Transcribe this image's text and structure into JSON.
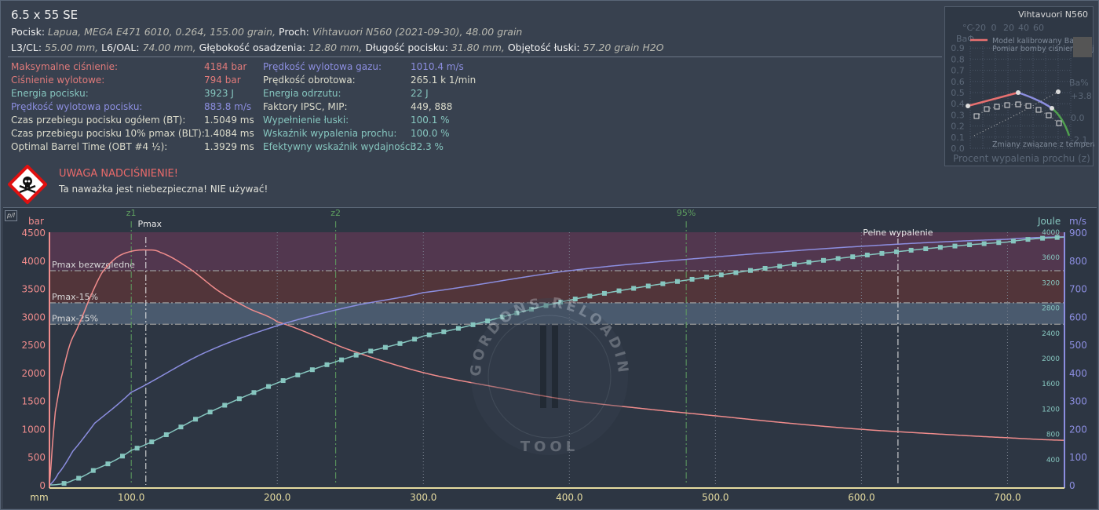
{
  "header": {
    "title": "6.5 x 55 SE",
    "bullet_label": "Pocisk:",
    "bullet_value": "Lapua, MEGA E471 6010, 0.264, 155.00 grain,",
    "powder_label": "Proch:",
    "powder_value": "Vihtavuori N560 (2021-09-30), 48.00 grain",
    "cl_label": "L3/CL:",
    "cl_value": "55.00 mm,",
    "oal_label": "L6/OAL:",
    "oal_value": "74.00 mm,",
    "seat_label": "Głębokość osadzenia:",
    "seat_value": "12.80 mm,",
    "blen_label": "Długość pocisku:",
    "blen_value": "31.80 mm,",
    "vol_label": "Objętość łuski:",
    "vol_value": "57.20 grain H2O"
  },
  "stats_left": [
    {
      "label": "Maksymalne ciśnienie:",
      "value": "4184 bar",
      "color": "red"
    },
    {
      "label": "Ciśnienie wylotowe:",
      "value": "794 bar",
      "color": "red"
    },
    {
      "label": "Energia pocisku:",
      "value": "3923 J",
      "color": "teal"
    },
    {
      "label": "Prędkość wylotowa pocisku:",
      "value": "883.8 m/s",
      "color": "pur"
    },
    {
      "label": "Czas przebiegu pocisku ogółem (BT):",
      "value": "1.5049 ms",
      "color": "lt"
    },
    {
      "label": "Czas przebiegu pocisku 10% pmax (BLT):",
      "value": "1.4084 ms",
      "color": "lt"
    },
    {
      "label": "Optimal Barrel Time (OBT #4 ½):",
      "value": "1.3929 ms",
      "color": "lt"
    }
  ],
  "stats_right": [
    {
      "label": "Prędkość wylotowa gazu:",
      "value": "1010.4 m/s",
      "color": "pur"
    },
    {
      "label": "Prędkość obrotowa:",
      "value": "265.1 k 1/min",
      "color": "lt"
    },
    {
      "label": "Energia odrzutu:",
      "value": "22 J",
      "color": "teal"
    },
    {
      "label": "Faktory IPSC, MIP:",
      "value": "449, 888",
      "color": "lt"
    },
    {
      "label": "Wypełnienie łuski:",
      "value": "100.1 %",
      "color": "teal"
    },
    {
      "label": "Wskaźnik wypalenia prochu:",
      "value": "100.0 %",
      "color": "teal"
    },
    {
      "label": "Efektywny wskaźnik wydajności:",
      "value": "32.3 %",
      "color": "teal"
    }
  ],
  "warning": {
    "title": "UWAGA NADCIŚNIENIE!",
    "text": "Ta naważka jest niebezpieczna! NIE używać!"
  },
  "inset": {
    "title": "Vihtavuori N560",
    "y_label": "BaΦ",
    "y_ticks": [
      "0.0",
      "0.1",
      "0.2",
      "0.3",
      "0.4",
      "0.5",
      "0.6",
      "0.7",
      "0.8",
      "0.9"
    ],
    "temp_label": "°C",
    "temp_ticks": [
      "-20",
      "0",
      "20",
      "40",
      "60"
    ],
    "right_label": "Ba%",
    "right_ticks": [
      "+3.8",
      "0.0",
      "-2.1"
    ],
    "legend": [
      "Model kalibrowany BaΦ",
      "Pomiar bomby ciśnieniowej",
      "Zmiany związane z temperaturą"
    ],
    "x_label": "Procent wypalenia prochu (z)"
  },
  "plot_toggle": "p/l",
  "watermark": {
    "top": "GORDONS RELOADING",
    "bottom": "TOOL"
  },
  "colors": {
    "pressure": "#f08c8c",
    "velocity": "#8c8ee0",
    "energy": "#86c6bf",
    "band_abs": "#52374f",
    "band_15": "#52353a",
    "band_25": "#4a5a6e"
  },
  "chart_data": {
    "type": "line",
    "xlabel": "mm",
    "ylabel_left": "bar",
    "ylabel_right1": "Joule",
    "ylabel_right2": "m/s",
    "xlim": [
      44,
      739
    ],
    "ylim_left": [
      0,
      4500
    ],
    "ylim_joule": [
      0,
      4000
    ],
    "ylim_ms": [
      0,
      900
    ],
    "x_ticks": [
      "100.0",
      "200.0",
      "300.0",
      "400.0",
      "500.0",
      "600.0",
      "700.0"
    ],
    "y_ticks_left": [
      "0",
      "500",
      "1000",
      "1500",
      "2000",
      "2500",
      "3000",
      "3500",
      "4000",
      "4500"
    ],
    "y_ticks_joule": [
      "400",
      "800",
      "1200",
      "1600",
      "2000",
      "2400",
      "2800",
      "3200",
      "3600",
      "4000"
    ],
    "y_ticks_ms": [
      "0",
      "100",
      "200",
      "300",
      "400",
      "500",
      "600",
      "700",
      "800",
      "900"
    ],
    "bands": [
      {
        "label": "Pmax bezwzgledne",
        "from": 3815,
        "to": 4500
      },
      {
        "label": "Pmax-15%",
        "from": 3243,
        "to": 3815
      },
      {
        "label": "Pmax-25%",
        "from": 2861,
        "to": 3243
      }
    ],
    "markers": [
      {
        "label": "z1",
        "x": 100,
        "color": "#5fa060"
      },
      {
        "label": "Pmax",
        "x": 110,
        "color": "#e8e8e8"
      },
      {
        "label": "z2",
        "x": 240,
        "color": "#5fa060"
      },
      {
        "label": "95%",
        "x": 480,
        "color": "#5fa060"
      },
      {
        "label": "Pełne wypalenie",
        "x": 625,
        "color": "#e8e8e8"
      }
    ],
    "series": [
      {
        "name": "pressure (bar)",
        "x": [
          44,
          46,
          48,
          52,
          58,
          64,
          72,
          80,
          90,
          100,
          110,
          120,
          140,
          160,
          180,
          200,
          250,
          300,
          350,
          400,
          450,
          500,
          550,
          600,
          650,
          700,
          739
        ],
        "y": [
          0,
          700,
          1300,
          1900,
          2500,
          2850,
          3350,
          3780,
          4050,
          4160,
          4184,
          4140,
          3850,
          3450,
          3150,
          2905,
          2400,
          2000,
          1740,
          1510,
          1360,
          1230,
          1100,
          990,
          910,
          840,
          794
        ]
      },
      {
        "name": "velocity (m/s)",
        "x": [
          44,
          50,
          60,
          75,
          100,
          150,
          200,
          250,
          300,
          400,
          500,
          600,
          700,
          739
        ],
        "y": [
          0,
          40,
          120,
          220,
          330,
          470,
          567,
          635,
          685,
          763,
          812,
          850,
          875,
          883.8
        ]
      },
      {
        "name": "energy (J)",
        "derived_from": "velocity",
        "muzzle": 3923
      }
    ]
  }
}
